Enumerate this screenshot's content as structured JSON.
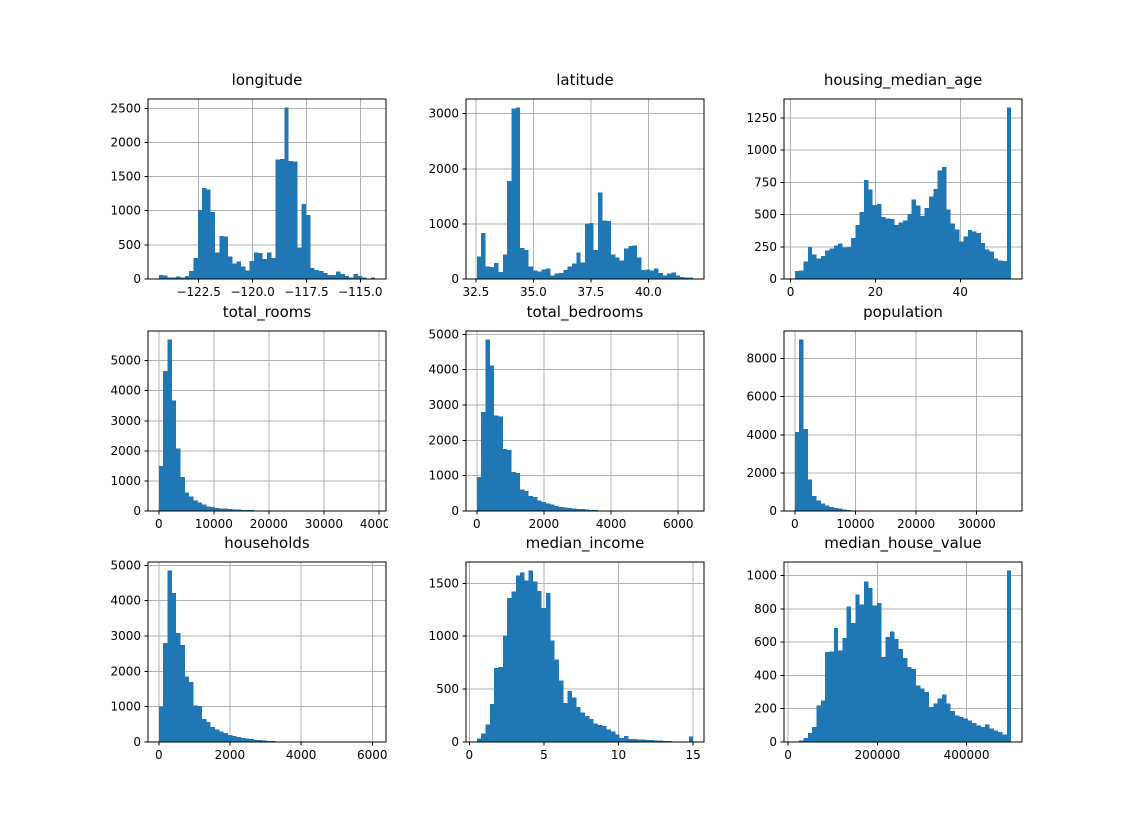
{
  "figure": {
    "background": "#ffffff",
    "bar_color": "#1f77b4",
    "grid_color": "#b0b0b0",
    "axes_edge_color": "#000000",
    "text_color": "#000000",
    "grid": true,
    "layout": "3x3 histogram grid"
  },
  "chart_data": [
    {
      "type": "bar",
      "title": "longitude",
      "xlabel": "",
      "ylabel": "",
      "bin_range": [
        -124.35,
        -114.31
      ],
      "xlim": [
        -124.852,
        -113.808
      ],
      "ylim": [
        0,
        2635.5
      ],
      "xticks": [
        -122.5,
        -120.0,
        -117.5,
        -115.0
      ],
      "xtick_labels": [
        "−122.5",
        "−120.0",
        "−117.5",
        "−115.0"
      ],
      "yticks": [
        0,
        500,
        1000,
        1500,
        2000,
        2500
      ],
      "ytick_labels": [
        "0",
        "500",
        "1000",
        "1500",
        "2000",
        "2500"
      ],
      "values": [
        55,
        50,
        20,
        25,
        35,
        25,
        45,
        120,
        310,
        1010,
        1330,
        1310,
        980,
        390,
        630,
        620,
        330,
        230,
        255,
        180,
        125,
        265,
        390,
        380,
        290,
        390,
        310,
        1750,
        1760,
        2510,
        1730,
        1720,
        460,
        1100,
        940,
        160,
        130,
        120,
        90,
        60,
        55,
        110,
        70,
        45,
        25,
        70,
        45,
        25,
        5,
        20
      ]
    },
    {
      "type": "bar",
      "title": "latitude",
      "xlabel": "",
      "ylabel": "",
      "bin_range": [
        32.54,
        41.95
      ],
      "xlim": [
        32.0695,
        42.4205
      ],
      "ylim": [
        0,
        3265.5
      ],
      "xticks": [
        32.5,
        35.0,
        37.5,
        40.0
      ],
      "xtick_labels": [
        "32.5",
        "35.0",
        "37.5",
        "40.0"
      ],
      "yticks": [
        0,
        1000,
        2000,
        3000
      ],
      "ytick_labels": [
        "0",
        "1000",
        "2000",
        "3000"
      ],
      "values": [
        410,
        830,
        230,
        215,
        290,
        130,
        445,
        1780,
        3090,
        3110,
        560,
        530,
        230,
        150,
        140,
        170,
        190,
        60,
        100,
        110,
        160,
        230,
        280,
        480,
        300,
        1010,
        1020,
        530,
        1570,
        1060,
        1050,
        440,
        390,
        340,
        550,
        600,
        610,
        390,
        160,
        170,
        150,
        190,
        110,
        60,
        100,
        120,
        60,
        35,
        30,
        25
      ]
    },
    {
      "type": "bar",
      "title": "housing_median_age",
      "xlabel": "",
      "ylabel": "",
      "bin_range": [
        1,
        52
      ],
      "xlim": [
        -1.55,
        54.55
      ],
      "ylim": [
        0,
        1396.5
      ],
      "xticks": [
        0,
        20,
        40
      ],
      "xtick_labels": [
        "0",
        "20",
        "40"
      ],
      "yticks": [
        0,
        250,
        500,
        750,
        1000,
        1250
      ],
      "ytick_labels": [
        "0",
        "250",
        "500",
        "750",
        "1000",
        "1250"
      ],
      "values": [
        62,
        65,
        135,
        250,
        190,
        160,
        180,
        220,
        235,
        260,
        275,
        245,
        250,
        320,
        420,
        520,
        770,
        695,
        575,
        580,
        480,
        470,
        465,
        420,
        440,
        455,
        505,
        615,
        570,
        490,
        550,
        640,
        700,
        840,
        870,
        540,
        430,
        385,
        290,
        330,
        380,
        370,
        355,
        280,
        230,
        215,
        160,
        145,
        140,
        1330
      ]
    },
    {
      "type": "bar",
      "title": "total_rooms",
      "xlabel": "",
      "ylabel": "",
      "bin_range": [
        2,
        39320
      ],
      "xlim": [
        -1963.9,
        41285.9
      ],
      "ylim": [
        0,
        5985
      ],
      "xticks": [
        0,
        10000,
        20000,
        30000,
        40000
      ],
      "xtick_labels": [
        "0",
        "10000",
        "20000",
        "30000",
        "40000"
      ],
      "yticks": [
        0,
        1000,
        2000,
        3000,
        4000,
        5000
      ],
      "ytick_labels": [
        "0",
        "1000",
        "2000",
        "3000",
        "4000",
        "5000"
      ],
      "values": [
        1500,
        4650,
        5700,
        3680,
        2080,
        1130,
        620,
        480,
        350,
        280,
        210,
        150,
        130,
        100,
        90,
        75,
        60,
        50,
        45,
        40,
        30,
        25,
        20,
        15,
        12,
        10,
        8,
        6,
        5,
        5,
        4,
        3,
        3,
        2,
        2,
        2,
        1,
        1,
        1,
        1,
        1,
        0,
        1,
        0,
        0,
        1,
        0,
        0,
        0,
        1
      ]
    },
    {
      "type": "bar",
      "title": "total_bedrooms",
      "xlabel": "",
      "ylabel": "",
      "bin_range": [
        1,
        6445
      ],
      "xlim": [
        -321.2,
        6767.2
      ],
      "ylim": [
        0,
        5092.5
      ],
      "xticks": [
        0,
        2000,
        4000,
        6000
      ],
      "xtick_labels": [
        "0",
        "2000",
        "4000",
        "6000"
      ],
      "yticks": [
        0,
        1000,
        2000,
        3000,
        4000,
        5000
      ],
      "ytick_labels": [
        "0",
        "1000",
        "2000",
        "3000",
        "4000",
        "5000"
      ],
      "values": [
        960,
        2800,
        4850,
        4120,
        2700,
        2670,
        1750,
        1730,
        1100,
        1080,
        610,
        560,
        420,
        390,
        300,
        250,
        210,
        190,
        140,
        120,
        100,
        90,
        70,
        60,
        50,
        40,
        30,
        25,
        20,
        15,
        12,
        10,
        8,
        6,
        5,
        4,
        3,
        2,
        2,
        1,
        1,
        1,
        0,
        1,
        0,
        0,
        1,
        0,
        0,
        1
      ]
    },
    {
      "type": "bar",
      "title": "population",
      "xlabel": "",
      "ylabel": "",
      "bin_range": [
        3,
        35682
      ],
      "xlim": [
        -1780.95,
        37465.95
      ],
      "ylim": [
        0,
        9450
      ],
      "xticks": [
        0,
        10000,
        20000,
        30000
      ],
      "xtick_labels": [
        "0",
        "10000",
        "20000",
        "30000"
      ],
      "yticks": [
        0,
        2000,
        4000,
        6000,
        8000
      ],
      "ytick_labels": [
        "0",
        "2000",
        "4000",
        "6000",
        "8000"
      ],
      "values": [
        4150,
        9000,
        4300,
        1650,
        800,
        550,
        400,
        300,
        220,
        160,
        120,
        90,
        60,
        20,
        15,
        10,
        8,
        6,
        5,
        4,
        3,
        2,
        2,
        1,
        1,
        1,
        0,
        1,
        0,
        1,
        0,
        0,
        0,
        1,
        0,
        0,
        0,
        0,
        1,
        0,
        0,
        0,
        0,
        0,
        0,
        0,
        0,
        0,
        0,
        1
      ]
    },
    {
      "type": "bar",
      "title": "households",
      "xlabel": "",
      "ylabel": "",
      "bin_range": [
        1,
        6082
      ],
      "xlim": [
        -303.05,
        6386.05
      ],
      "ylim": [
        0,
        5092.5
      ],
      "xticks": [
        0,
        2000,
        4000,
        6000
      ],
      "xtick_labels": [
        "0",
        "2000",
        "4000",
        "6000"
      ],
      "yticks": [
        0,
        1000,
        2000,
        3000,
        4000,
        5000
      ],
      "ytick_labels": [
        "0",
        "1000",
        "2000",
        "3000",
        "4000",
        "5000"
      ],
      "values": [
        1010,
        2800,
        4850,
        4220,
        3080,
        2750,
        1850,
        1700,
        1030,
        1020,
        650,
        560,
        430,
        350,
        300,
        250,
        200,
        170,
        140,
        120,
        100,
        80,
        60,
        50,
        40,
        30,
        25,
        20,
        15,
        12,
        10,
        8,
        6,
        5,
        4,
        3,
        3,
        2,
        2,
        1,
        1,
        1,
        0,
        1,
        0,
        0,
        0,
        1,
        0,
        1
      ]
    },
    {
      "type": "bar",
      "title": "median_income",
      "xlabel": "",
      "ylabel": "",
      "bin_range": [
        0.4999,
        15.0001
      ],
      "xlim": [
        -0.2251,
        15.7251
      ],
      "ylim": [
        0,
        1701
      ],
      "xticks": [
        0,
        5,
        10,
        15
      ],
      "xtick_labels": [
        "0",
        "5",
        "10",
        "15"
      ],
      "yticks": [
        0,
        500,
        1000,
        1500
      ],
      "ytick_labels": [
        "0",
        "500",
        "1000",
        "1500"
      ],
      "values": [
        35,
        80,
        165,
        360,
        700,
        710,
        1005,
        1360,
        1420,
        1575,
        1600,
        1525,
        1620,
        1515,
        1425,
        1265,
        1410,
        960,
        780,
        580,
        370,
        480,
        420,
        330,
        280,
        245,
        215,
        175,
        160,
        150,
        120,
        100,
        70,
        40,
        55,
        30,
        28,
        25,
        22,
        20,
        18,
        15,
        12,
        10,
        8,
        6,
        5,
        5,
        4,
        50
      ]
    },
    {
      "type": "bar",
      "title": "median_house_value",
      "xlabel": "",
      "ylabel": "",
      "bin_range": [
        14999,
        500001
      ],
      "xlim": [
        -9251.1,
        524251.1
      ],
      "ylim": [
        0,
        1081.5
      ],
      "xticks": [
        0,
        200000,
        400000
      ],
      "xtick_labels": [
        "0",
        "200000",
        "400000"
      ],
      "yticks": [
        0,
        200,
        400,
        600,
        800,
        1000
      ],
      "ytick_labels": [
        "0",
        "200",
        "400",
        "600",
        "800",
        "1000"
      ],
      "values": [
        4,
        10,
        25,
        55,
        90,
        220,
        250,
        540,
        545,
        685,
        550,
        625,
        815,
        715,
        885,
        825,
        965,
        925,
        820,
        835,
        510,
        630,
        665,
        620,
        560,
        505,
        450,
        440,
        340,
        320,
        300,
        210,
        230,
        260,
        285,
        230,
        185,
        160,
        150,
        140,
        130,
        115,
        100,
        90,
        105,
        80,
        70,
        60,
        45,
        1030
      ]
    }
  ]
}
